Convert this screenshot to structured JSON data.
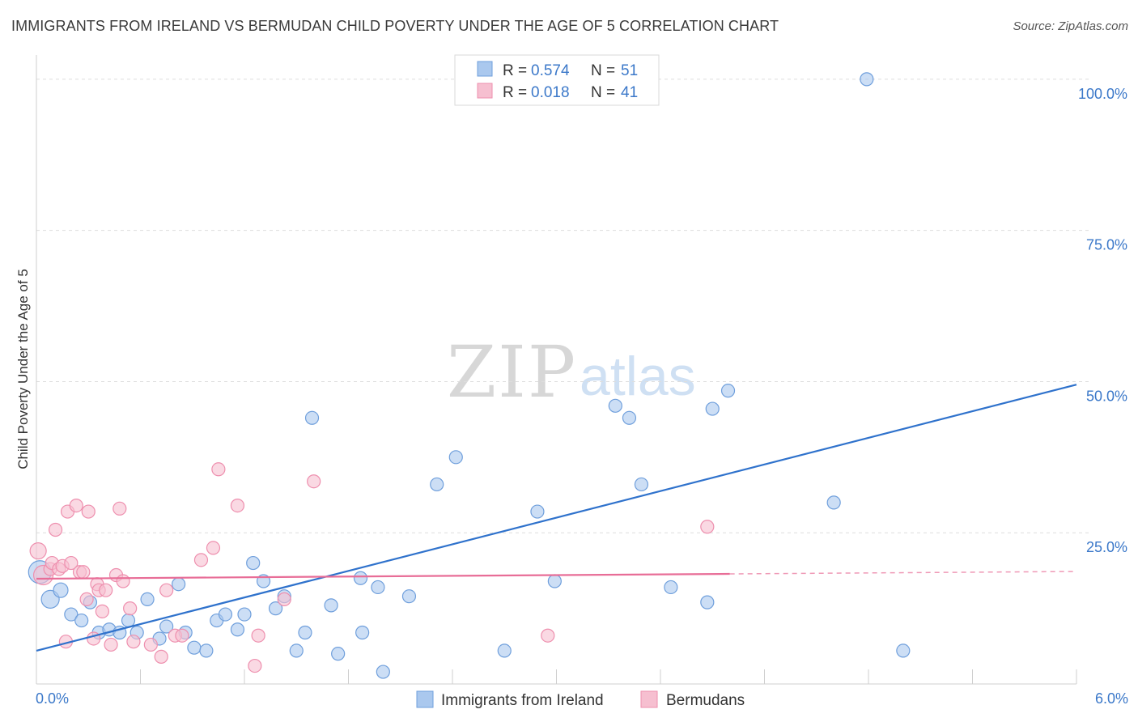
{
  "title": "IMMIGRANTS FROM IRELAND VS BERMUDAN CHILD POVERTY UNDER THE AGE OF 5 CORRELATION CHART",
  "source": "Source: ZipAtlas.com",
  "colors": {
    "blue_fill": "#aac8ee",
    "blue_stroke": "#6f9fdc",
    "blue_line": "#2f72cc",
    "pink_fill": "#f6bfd0",
    "pink_stroke": "#ee8fae",
    "pink_line": "#e86d97",
    "accent_text": "#3b78c9",
    "grid": "#dddddd"
  },
  "chart_data": {
    "type": "scatter",
    "title": "IMMIGRANTS FROM IRELAND VS BERMUDAN CHILD POVERTY UNDER THE AGE OF 5 CORRELATION CHART",
    "xlabel": "",
    "ylabel": "Child Poverty Under the Age of 5",
    "xlim": [
      0,
      6
    ],
    "ylim": [
      0,
      104
    ],
    "x_tick_labels": [
      "0.0%",
      "6.0%"
    ],
    "y_ticks": [
      25,
      50,
      75,
      100
    ],
    "y_tick_labels": [
      "25.0%",
      "50.0%",
      "75.0%",
      "100.0%"
    ],
    "grid": true,
    "legend_position": "top-center",
    "watermark": {
      "zip": "ZIP",
      "atlas": "atlas"
    },
    "legend": [
      {
        "r_label": "R = ",
        "r_value": "0.574",
        "n_label": "N = ",
        "n_value": "51"
      },
      {
        "r_label": "R = ",
        "r_value": "0.018",
        "n_label": "N = ",
        "n_value": "41"
      }
    ],
    "series": [
      {
        "name": "Immigrants from Ireland",
        "color": "#aac8ee",
        "trend": {
          "x": [
            0,
            6
          ],
          "y": [
            5.5,
            49.5
          ],
          "dashed_from": null
        },
        "points": [
          [
            0.02,
            18.5,
            14
          ],
          [
            0.08,
            14.0,
            11
          ],
          [
            0.14,
            15.5,
            9
          ],
          [
            0.2,
            11.5,
            8
          ],
          [
            0.26,
            10.5,
            8
          ],
          [
            0.31,
            13.5,
            8
          ],
          [
            0.36,
            8.5,
            8
          ],
          [
            0.42,
            9.0,
            8
          ],
          [
            0.48,
            8.5,
            8
          ],
          [
            0.53,
            10.5,
            8
          ],
          [
            0.58,
            8.5,
            8
          ],
          [
            0.64,
            14.0,
            8
          ],
          [
            0.71,
            7.5,
            8
          ],
          [
            0.75,
            9.5,
            8
          ],
          [
            0.82,
            16.5,
            8
          ],
          [
            0.86,
            8.5,
            8
          ],
          [
            0.91,
            6.0,
            8
          ],
          [
            0.98,
            5.5,
            8
          ],
          [
            1.04,
            10.5,
            8
          ],
          [
            1.09,
            11.5,
            8
          ],
          [
            1.16,
            9.0,
            8
          ],
          [
            1.2,
            11.5,
            8
          ],
          [
            1.25,
            20.0,
            8
          ],
          [
            1.31,
            17.0,
            8
          ],
          [
            1.38,
            12.5,
            8
          ],
          [
            1.43,
            14.5,
            8
          ],
          [
            1.5,
            5.5,
            8
          ],
          [
            1.55,
            8.5,
            8
          ],
          [
            1.59,
            44.0,
            8
          ],
          [
            1.7,
            13.0,
            8
          ],
          [
            1.74,
            5.0,
            8
          ],
          [
            1.88,
            8.5,
            8
          ],
          [
            1.87,
            17.5,
            8
          ],
          [
            1.97,
            16.0,
            8
          ],
          [
            2.0,
            2.0,
            8
          ],
          [
            2.15,
            14.5,
            8
          ],
          [
            2.31,
            33.0,
            8
          ],
          [
            2.42,
            37.5,
            8
          ],
          [
            2.7,
            5.5,
            8
          ],
          [
            2.89,
            28.5,
            8
          ],
          [
            2.99,
            17.0,
            8
          ],
          [
            3.34,
            46.0,
            8
          ],
          [
            3.42,
            44.0,
            8
          ],
          [
            3.49,
            33.0,
            8
          ],
          [
            3.66,
            16.0,
            8
          ],
          [
            3.87,
            13.5,
            8
          ],
          [
            3.9,
            45.5,
            8
          ],
          [
            3.99,
            48.5,
            8
          ],
          [
            4.6,
            30.0,
            8
          ],
          [
            4.79,
            100.0,
            8
          ],
          [
            5.0,
            5.5,
            8
          ]
        ]
      },
      {
        "name": "Bermudans",
        "color": "#f6bfd0",
        "trend": {
          "x": [
            0,
            6
          ],
          "y": [
            17.4,
            18.6
          ],
          "dashed_from": 4.0
        },
        "points": [
          [
            0.01,
            22.0,
            10
          ],
          [
            0.04,
            18.0,
            12
          ],
          [
            0.08,
            19.0,
            8
          ],
          [
            0.09,
            20.0,
            8
          ],
          [
            0.11,
            25.5,
            8
          ],
          [
            0.13,
            19.0,
            8
          ],
          [
            0.15,
            19.5,
            8
          ],
          [
            0.17,
            7.0,
            8
          ],
          [
            0.18,
            28.5,
            8
          ],
          [
            0.2,
            20.0,
            8
          ],
          [
            0.23,
            29.5,
            8
          ],
          [
            0.25,
            18.5,
            8
          ],
          [
            0.27,
            18.5,
            8
          ],
          [
            0.29,
            14.0,
            8
          ],
          [
            0.3,
            28.5,
            8
          ],
          [
            0.33,
            7.5,
            8
          ],
          [
            0.35,
            16.5,
            8
          ],
          [
            0.36,
            15.5,
            8
          ],
          [
            0.38,
            12.0,
            8
          ],
          [
            0.4,
            15.5,
            8
          ],
          [
            0.43,
            6.5,
            8
          ],
          [
            0.46,
            18.0,
            8
          ],
          [
            0.48,
            29.0,
            8
          ],
          [
            0.5,
            17.0,
            8
          ],
          [
            0.54,
            12.5,
            8
          ],
          [
            0.56,
            7.0,
            8
          ],
          [
            0.66,
            6.5,
            8
          ],
          [
            0.72,
            4.5,
            8
          ],
          [
            0.75,
            15.5,
            8
          ],
          [
            0.8,
            8.0,
            8
          ],
          [
            0.84,
            8.0,
            8
          ],
          [
            0.95,
            20.5,
            8
          ],
          [
            1.02,
            22.5,
            8
          ],
          [
            1.05,
            35.5,
            8
          ],
          [
            1.16,
            29.5,
            8
          ],
          [
            1.26,
            3.0,
            8
          ],
          [
            1.28,
            8.0,
            8
          ],
          [
            1.43,
            14.0,
            8
          ],
          [
            1.6,
            33.5,
            8
          ],
          [
            2.95,
            8.0,
            8
          ],
          [
            3.87,
            26.0,
            8
          ]
        ]
      }
    ]
  }
}
